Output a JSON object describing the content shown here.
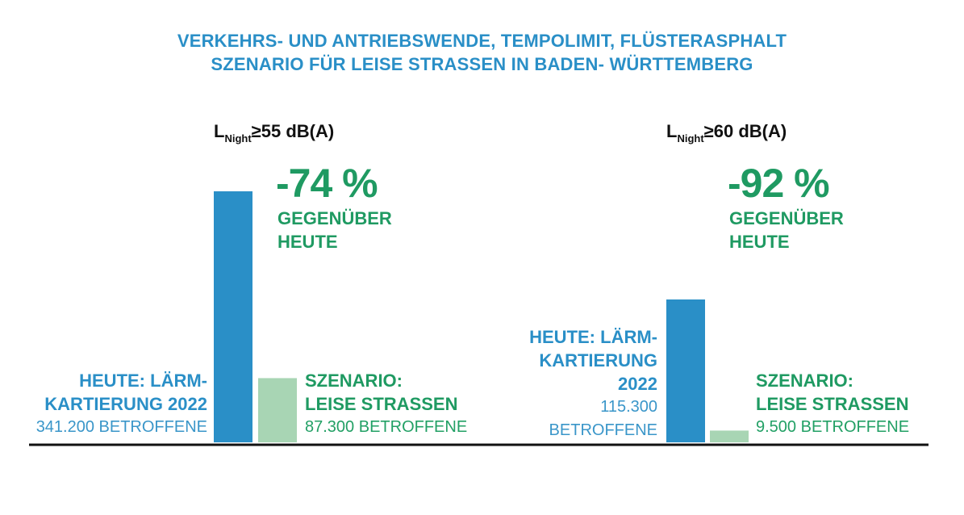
{
  "title": {
    "line1": "VERKEHRS- UND ANTRIEBSWENDE, TEMPOLIMIT, FLÜSTERASPHALT",
    "line2": "SZENARIO FÜR LEISE STRASSEN IN BADEN- WÜRTTEMBERG"
  },
  "colors": {
    "today": "#2a8fc7",
    "scenario": "#a8d5b4",
    "green_text": "#1f9a62",
    "baseline": "#111111"
  },
  "chart_data": [
    {
      "type": "bar",
      "condition": {
        "main": "L",
        "sub": "Night",
        "rest": "≥55 dB(A)"
      },
      "categories": [
        "HEUTE: LÄRMKARTIERUNG 2022",
        "SZENARIO: LEISE STRASSEN"
      ],
      "values": [
        341200,
        87300
      ],
      "category_labels": [
        {
          "bold": "HEUTE: LÄRM-\nKARTIERUNG 2022",
          "normal": "341.200 BETROFFENE"
        },
        {
          "bold": "SZENARIO:\nLEISE STRASSEN",
          "normal": "87.300 BETROFFENE"
        }
      ],
      "change": {
        "value": "-74 %",
        "label": "GEGENÜBER\nHEUTE"
      }
    },
    {
      "type": "bar",
      "condition": {
        "main": "L",
        "sub": "Night",
        "rest": "≥60 dB(A)"
      },
      "categories": [
        "HEUTE: LÄRMKARTIERUNG 2022",
        "SZENARIO: LEISE STRASSEN"
      ],
      "values": [
        115300,
        9500
      ],
      "category_labels": [
        {
          "bold": "HEUTE: LÄRM-\nKARTIERUNG\n2022",
          "normal": "115.300\nBETROFFENE"
        },
        {
          "bold": "SZENARIO:\nLEISE STRASSEN",
          "normal": "9.500 BETROFFENE"
        }
      ],
      "change": {
        "value": "-92 %",
        "label": "GEGENÜBER\nHEUTE"
      }
    }
  ]
}
